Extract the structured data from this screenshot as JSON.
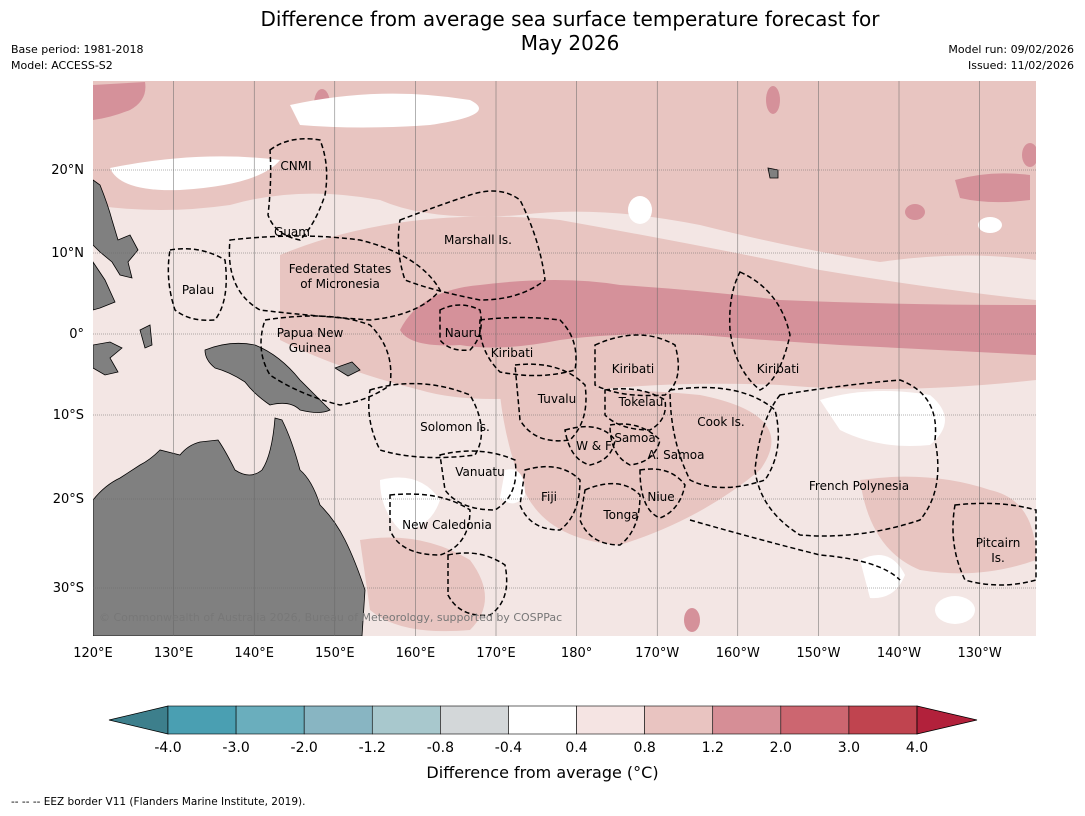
{
  "header": {
    "title_line1": "Difference from average sea surface temperature forecast for",
    "title_line2": "May 2026",
    "base_period": "Base period: 1981-2018",
    "model": "Model: ACCESS-S2",
    "model_run": "Model run: 09/02/2026",
    "issued": "Issued: 11/02/2026"
  },
  "map": {
    "lon_labels": [
      "120°E",
      "130°E",
      "140°E",
      "150°E",
      "160°E",
      "170°E",
      "180°",
      "170°W",
      "160°W",
      "150°W",
      "140°W",
      "130°W"
    ],
    "lat_labels": [
      "20°N",
      "10°N",
      "0°",
      "10°S",
      "20°S",
      "30°S"
    ],
    "regions": [
      "CNMI",
      "Guam",
      "Marshall Is.",
      "Federated States",
      "of Micronesia",
      "Palau",
      "Papua New",
      "Guinea",
      "Nauru",
      "Kiribati",
      "Kiribati",
      "Kiribati",
      "Tuvalu",
      "Tokelau",
      "Cook Is.",
      "Solomon Is.",
      "W & F",
      "Samoa",
      "A. Samoa",
      "Vanuatu",
      "Fiji",
      "Niue",
      "Tonga",
      "French Polynesia",
      "New Caledonia",
      "Pitcairn",
      "Is."
    ],
    "copyright": "© Commonwealth of Australia 2026, Bureau of Meteorology, supported by COSPPac"
  },
  "colorbar": {
    "ticks": [
      "-4.0",
      "-3.0",
      "-2.0",
      "-1.2",
      "-0.8",
      "-0.4",
      "0.4",
      "0.8",
      "1.2",
      "2.0",
      "3.0",
      "4.0"
    ],
    "colors": [
      "#4a9fb2",
      "#6aaebd",
      "#88b5c2",
      "#a8c8cd",
      "#d3d7d9",
      "#ffffff",
      "#f5e4e3",
      "#e9c4c1",
      "#d68e96",
      "#cc6670",
      "#c0444f"
    ],
    "under_color": "#3d7f8c",
    "over_color": "#b2213b",
    "label": "Difference from average (°C)"
  },
  "legend_colors": {
    "land": "#808080",
    "pale": "#f3e6e4",
    "light": "#e8c5c1",
    "medium": "#d5919a",
    "strong": "#cc6670"
  },
  "footer": {
    "eez_note": "--  --  -- EEZ border V11 (Flanders Marine Institute, 2019)."
  }
}
